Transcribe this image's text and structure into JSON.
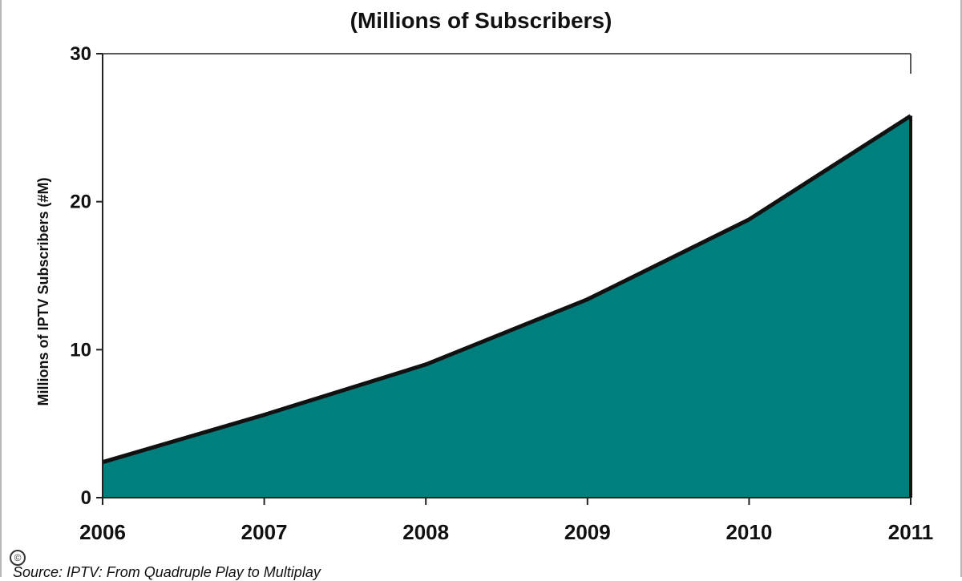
{
  "chart_data": {
    "type": "area",
    "title": "",
    "subtitle": "(Millions of Subscribers)",
    "xlabel": "",
    "ylabel": "Millions of IPTV Subscribers (#M)",
    "x": [
      "2006",
      "2007",
      "2008",
      "2009",
      "2010",
      "2011"
    ],
    "series": [
      {
        "values": [
          2.4,
          5.6,
          9.0,
          13.4,
          18.8,
          25.8
        ]
      }
    ],
    "ylim": [
      0,
      30
    ],
    "yticks": [
      "0",
      "10",
      "20",
      "30"
    ],
    "grid": false,
    "legend": "none",
    "fill_color": "#007F7F",
    "line_color": "#111111"
  },
  "copyright_symbol": "©",
  "source_text": "Source: IPTV: From Quadruple Play to Multiplay"
}
